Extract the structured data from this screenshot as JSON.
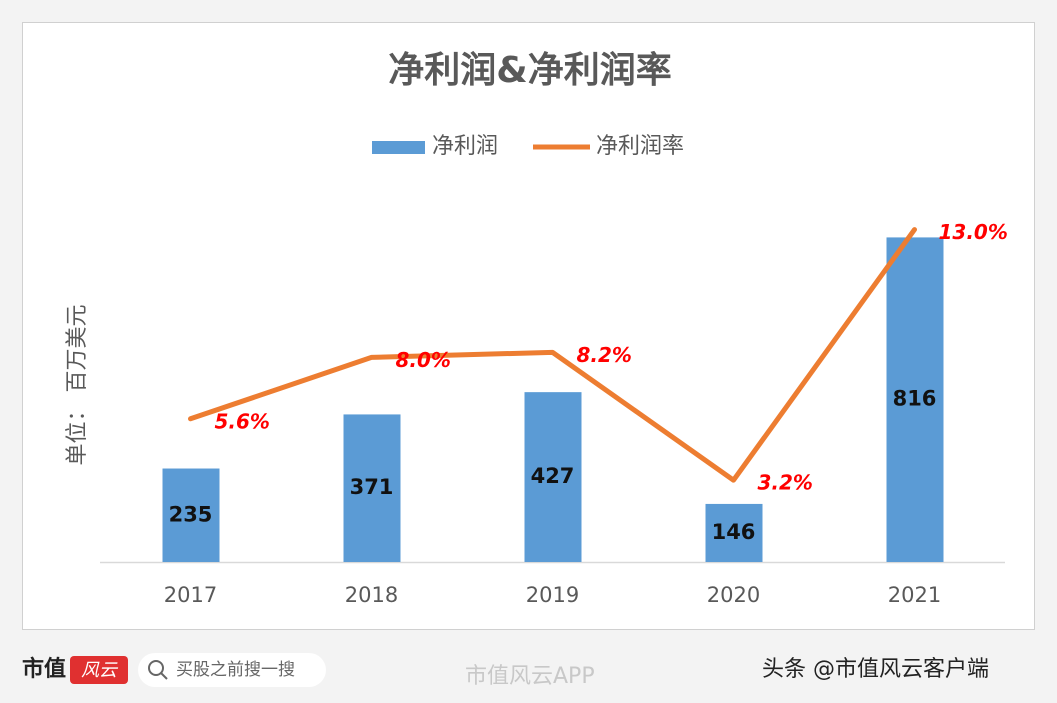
{
  "chart_data": {
    "type": "bar",
    "title": "净利润&净利润率",
    "y_label": "单位： 百万美元",
    "categories": [
      "2017",
      "2018",
      "2019",
      "2020",
      "2021"
    ],
    "series": [
      {
        "name": "净利润",
        "type": "bar",
        "color": "#5b9bd5",
        "values": [
          235,
          371,
          427,
          146,
          816
        ]
      },
      {
        "name": "净利润率",
        "type": "line",
        "axis": "y2",
        "color": "#ed7d31",
        "values": [
          5.6,
          8.0,
          8.2,
          3.2,
          13.0
        ],
        "value_labels": [
          "5.6%",
          "8.0%",
          "8.2%",
          "3.2%",
          "13.0%"
        ]
      }
    ],
    "ylim": [
      0,
      900
    ],
    "y2lim": [
      0,
      14
    ],
    "legend": "top"
  },
  "footer": {
    "logo": "市值",
    "logo_badge": "风云",
    "search": "买股之前搜一搜",
    "watermark": "市值风云APP",
    "source": "头条 @市值风云客户端"
  }
}
